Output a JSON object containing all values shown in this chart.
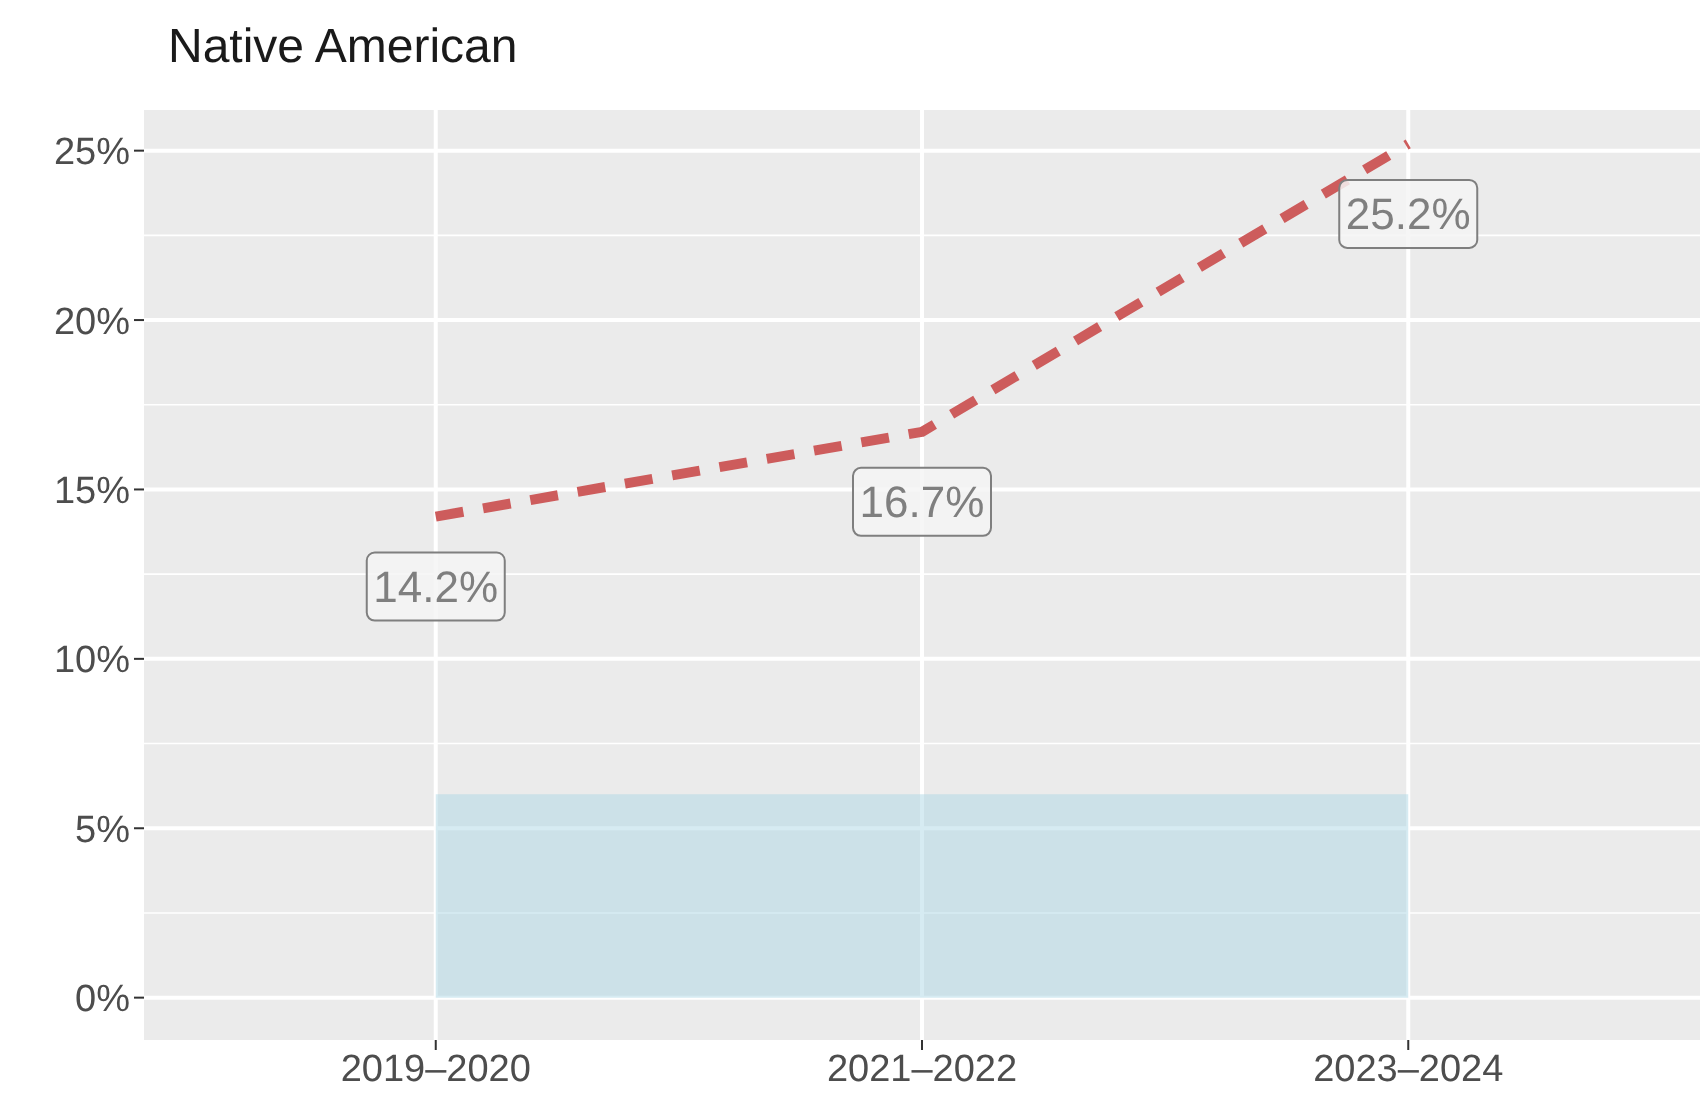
{
  "chart_data": {
    "type": "line",
    "title": "Native American",
    "categories": [
      "2019–2020",
      "2021–2022",
      "2023–2024"
    ],
    "series": [
      {
        "color": "#cd5c5c",
        "values": [
          14.2,
          16.7,
          25.2
        ],
        "value_labels": [
          "14.2%",
          "16.7%",
          "25.2%"
        ]
      }
    ],
    "line_style": "dashed",
    "marker": "none",
    "ylim": [
      -1.25,
      26.2
    ],
    "yticks": [
      {
        "value": 0,
        "label": "0%"
      },
      {
        "value": 5,
        "label": "5%"
      },
      {
        "value": 10,
        "label": "10%"
      },
      {
        "value": 15,
        "label": "15%"
      },
      {
        "value": 20,
        "label": "20%"
      },
      {
        "value": 25,
        "label": "25%"
      }
    ],
    "bands": [
      {
        "axis": "y",
        "from": 0,
        "to": 6,
        "color": "#add8e6"
      }
    ],
    "grid": true
  }
}
